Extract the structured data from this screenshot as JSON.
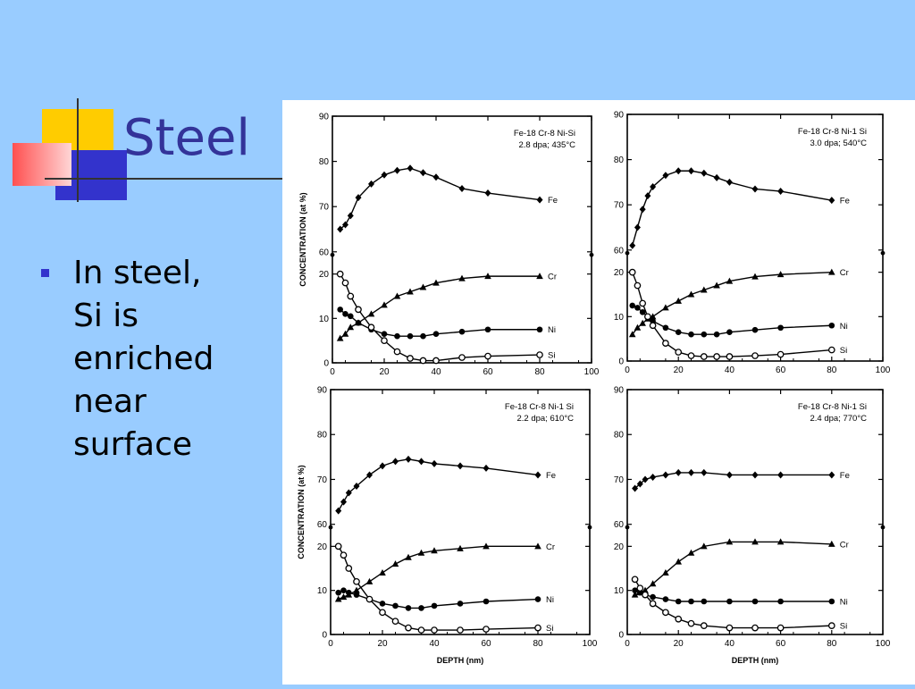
{
  "slide": {
    "title": "Steel",
    "bullet_lines": [
      "In steel,",
      "Si is",
      "enriched",
      "near",
      "surface"
    ]
  },
  "colors": {
    "background": "#99ccff",
    "title": "#333399",
    "bullet": "#3333cc",
    "deco_yellow": "#ffcc00",
    "deco_red": "#ff5050",
    "deco_blue": "#3333cc"
  },
  "chart_data": [
    {
      "type": "line",
      "annotation": [
        "Fe-18 Cr-8 Ni-Si",
        "2.8 dpa; 435°C"
      ],
      "xlabel": "",
      "ylabel": "CONCENTRATION (at %)",
      "xticks": [
        "0",
        "20",
        "40",
        "60",
        "80",
        "100"
      ],
      "yticks": [
        "0",
        "10",
        "20",
        "60",
        "70",
        "80",
        "90"
      ],
      "series": [
        {
          "name": "Fe",
          "marker": "diamond",
          "x": [
            3,
            5,
            7,
            10,
            15,
            20,
            25,
            30,
            35,
            40,
            50,
            60,
            80
          ],
          "y": [
            65,
            66,
            68,
            72,
            75,
            77,
            78,
            78.5,
            77.5,
            76.5,
            74,
            73,
            71.5
          ]
        },
        {
          "name": "Cr",
          "marker": "triangle",
          "x": [
            3,
            5,
            7,
            10,
            15,
            20,
            25,
            30,
            35,
            40,
            50,
            60,
            80
          ],
          "y": [
            5.5,
            6.5,
            8,
            9,
            11,
            13,
            15,
            16,
            17,
            18,
            19,
            19.5,
            19.5
          ]
        },
        {
          "name": "Ni",
          "marker": "circle-filled",
          "x": [
            3,
            5,
            7,
            10,
            15,
            20,
            25,
            30,
            35,
            40,
            50,
            60,
            80
          ],
          "y": [
            12,
            11,
            10.5,
            9,
            7.5,
            6.5,
            6,
            6,
            6,
            6.5,
            7,
            7.5,
            7.5
          ]
        },
        {
          "name": "Si",
          "marker": "circle-open",
          "x": [
            3,
            5,
            7,
            10,
            15,
            20,
            25,
            30,
            35,
            40,
            50,
            60,
            80
          ],
          "y": [
            20,
            18,
            15,
            12,
            8,
            5,
            2.5,
            1,
            0.5,
            0.5,
            1.2,
            1.5,
            1.8
          ]
        }
      ]
    },
    {
      "type": "line",
      "annotation": [
        "Fe-18 Cr-8 Ni-1 Si",
        "3.0 dpa; 540°C"
      ],
      "xlabel": "",
      "ylabel": "",
      "xticks": [
        "0",
        "20",
        "40",
        "60",
        "80",
        "100"
      ],
      "yticks": [
        "0",
        "10",
        "20",
        "60",
        "70",
        "80",
        "90"
      ],
      "series": [
        {
          "name": "Fe",
          "marker": "diamond",
          "x": [
            2,
            4,
            6,
            8,
            10,
            15,
            20,
            25,
            30,
            35,
            40,
            50,
            60,
            80
          ],
          "y": [
            61,
            65,
            69,
            72,
            74,
            76.5,
            77.5,
            77.5,
            77,
            76,
            75,
            73.5,
            73,
            71
          ]
        },
        {
          "name": "Cr",
          "marker": "triangle",
          "x": [
            2,
            4,
            6,
            8,
            10,
            15,
            20,
            25,
            30,
            35,
            40,
            50,
            60,
            80
          ],
          "y": [
            6,
            7.5,
            8.5,
            9.5,
            10,
            12,
            13.5,
            15,
            16,
            17,
            18,
            19,
            19.5,
            20
          ]
        },
        {
          "name": "Ni",
          "marker": "circle-filled",
          "x": [
            2,
            4,
            6,
            8,
            10,
            15,
            20,
            25,
            30,
            35,
            40,
            50,
            60,
            80
          ],
          "y": [
            12.5,
            12,
            11,
            10,
            9,
            7.5,
            6.5,
            6,
            6,
            6,
            6.5,
            7,
            7.5,
            8
          ]
        },
        {
          "name": "Si",
          "marker": "circle-open",
          "x": [
            2,
            4,
            6,
            8,
            10,
            15,
            20,
            25,
            30,
            35,
            40,
            50,
            60,
            80
          ],
          "y": [
            20,
            17,
            13,
            10,
            8,
            4,
            2,
            1.2,
            1,
            1,
            1,
            1.2,
            1.5,
            2.5
          ]
        }
      ]
    },
    {
      "type": "line",
      "annotation": [
        "Fe-18 Cr-8 Ni-1 Si",
        "2.2 dpa; 610°C"
      ],
      "xlabel": "DEPTH (nm)",
      "ylabel": "CONCENTRATION (at %)",
      "xticks": [
        "0",
        "20",
        "40",
        "60",
        "80",
        "100"
      ],
      "yticks": [
        "0",
        "10",
        "20",
        "60",
        "70",
        "80",
        "90"
      ],
      "series": [
        {
          "name": "Fe",
          "marker": "diamond",
          "x": [
            3,
            5,
            7,
            10,
            15,
            20,
            25,
            30,
            35,
            40,
            50,
            60,
            80
          ],
          "y": [
            63,
            65,
            67,
            68.5,
            71,
            73,
            74,
            74.5,
            74,
            73.5,
            73,
            72.5,
            71
          ]
        },
        {
          "name": "Cr",
          "marker": "triangle",
          "x": [
            3,
            5,
            7,
            10,
            15,
            20,
            25,
            30,
            35,
            40,
            50,
            60,
            80
          ],
          "y": [
            8,
            8.5,
            9,
            10,
            12,
            14,
            16,
            17.5,
            18.5,
            19,
            19.5,
            20,
            20
          ]
        },
        {
          "name": "Ni",
          "marker": "circle-filled",
          "x": [
            3,
            5,
            7,
            10,
            15,
            20,
            25,
            30,
            35,
            40,
            50,
            60,
            80
          ],
          "y": [
            9.5,
            10,
            9.5,
            9,
            8,
            7,
            6.5,
            6,
            6,
            6.5,
            7,
            7.5,
            8
          ]
        },
        {
          "name": "Si",
          "marker": "circle-open",
          "x": [
            3,
            5,
            7,
            10,
            15,
            20,
            25,
            30,
            35,
            40,
            50,
            60,
            80
          ],
          "y": [
            20,
            18,
            15,
            12,
            8,
            5,
            3,
            1.5,
            1,
            1,
            1,
            1.2,
            1.5
          ]
        }
      ]
    },
    {
      "type": "line",
      "annotation": [
        "Fe-18 Cr-8 Ni-1 Si",
        "2.4 dpa; 770°C"
      ],
      "xlabel": "DEPTH (nm)",
      "ylabel": "",
      "xticks": [
        "0",
        "20",
        "40",
        "60",
        "80",
        "100"
      ],
      "yticks": [
        "0",
        "10",
        "20",
        "60",
        "70",
        "80",
        "90"
      ],
      "series": [
        {
          "name": "Fe",
          "marker": "diamond",
          "x": [
            3,
            5,
            7,
            10,
            15,
            20,
            25,
            30,
            40,
            50,
            60,
            80
          ],
          "y": [
            68,
            69,
            70,
            70.5,
            71,
            71.5,
            71.5,
            71.5,
            71,
            71,
            71,
            71
          ]
        },
        {
          "name": "Cr",
          "marker": "triangle",
          "x": [
            3,
            5,
            7,
            10,
            15,
            20,
            25,
            30,
            40,
            50,
            60,
            80
          ],
          "y": [
            9,
            9.5,
            10,
            11.5,
            14,
            16.5,
            18.5,
            20,
            21,
            21,
            21,
            20.5
          ]
        },
        {
          "name": "Ni",
          "marker": "circle-filled",
          "x": [
            3,
            5,
            7,
            10,
            15,
            20,
            25,
            30,
            40,
            50,
            60,
            80
          ],
          "y": [
            10,
            9.5,
            9,
            8.5,
            8,
            7.5,
            7.5,
            7.5,
            7.5,
            7.5,
            7.5,
            7.5
          ]
        },
        {
          "name": "Si",
          "marker": "circle-open",
          "x": [
            3,
            5,
            7,
            10,
            15,
            20,
            25,
            30,
            40,
            50,
            60,
            80
          ],
          "y": [
            12.5,
            10.5,
            9,
            7,
            5,
            3.5,
            2.5,
            2,
            1.5,
            1.5,
            1.5,
            2
          ]
        }
      ]
    }
  ]
}
